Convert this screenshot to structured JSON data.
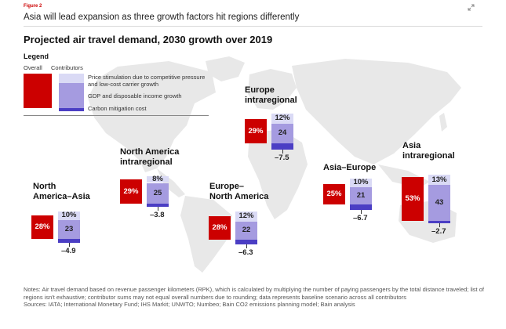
{
  "header": {
    "figure_label": "Figure 2",
    "title": "Asia will lead expansion as three growth factors hit regions differently"
  },
  "legend": {
    "title": "Legend",
    "overall_label": "Overall",
    "contributors_label": "Contributors",
    "price_text": "Price stimulation due to competitive pressure and low-cost carrier growth",
    "gdp_text": "GDP and disposable income growth",
    "carbon_text": "Carbon mitigation cost"
  },
  "colors": {
    "overall": "#cc0000",
    "price": "#dadaf5",
    "gdp": "#a59be0",
    "carbon": "#4b3ec4",
    "map": "#e8e8e8"
  },
  "chart_data": {
    "type": "bar",
    "title": "Projected air travel demand, 2030 growth over 2019",
    "unit": "%",
    "regions": [
      {
        "name": "North America–Asia",
        "overall": 28,
        "price": 10,
        "gdp": 23,
        "carbon": -4.9,
        "overall_label": "28%",
        "price_label": "10%",
        "gdp_label": "23",
        "carbon_label": "–4.9"
      },
      {
        "name": "North America intraregional",
        "overall": 29,
        "price": 8,
        "gdp": 25,
        "carbon": -3.8,
        "overall_label": "29%",
        "price_label": "8%",
        "gdp_label": "25",
        "carbon_label": "–3.8"
      },
      {
        "name": "Europe–North America",
        "overall": 28,
        "price": 12,
        "gdp": 22,
        "carbon": -6.3,
        "overall_label": "28%",
        "price_label": "12%",
        "gdp_label": "22",
        "carbon_label": "–6.3"
      },
      {
        "name": "Europe intraregional",
        "overall": 29,
        "price": 12,
        "gdp": 24,
        "carbon": -7.5,
        "overall_label": "29%",
        "price_label": "12%",
        "gdp_label": "24",
        "carbon_label": "–7.5"
      },
      {
        "name": "Asia–Europe",
        "overall": 25,
        "price": 10,
        "gdp": 21,
        "carbon": -6.7,
        "overall_label": "25%",
        "price_label": "10%",
        "gdp_label": "21",
        "carbon_label": "–6.7"
      },
      {
        "name": "Asia intraregional",
        "overall": 53,
        "price": 13,
        "gdp": 43,
        "carbon": -2.7,
        "overall_label": "53%",
        "price_label": "13%",
        "gdp_label": "43",
        "carbon_label": "–2.7"
      }
    ]
  },
  "region_titles": {
    "na_asia": [
      "North",
      "America–Asia"
    ],
    "na_intra": [
      "North America",
      "intraregional"
    ],
    "eu_na": [
      "Europe–",
      "North America"
    ],
    "eu_intra": [
      "Europe",
      "intraregional"
    ],
    "asia_eu": [
      "Asia–Europe"
    ],
    "asia_intra": [
      "Asia",
      "intraregional"
    ]
  },
  "notes": {
    "note": "Notes: Air travel demand based on revenue passenger kilometers (RPK), which is calculated by multiplying the number of paying passengers by the total distance traveled; list of regions isn't exhaustive; contributor sums may not equal overall numbers due to rounding; data represents baseline scenario across all contributors",
    "sources": "Sources: IATA; International Monetary Fund; IHS Markit; UNWTO; Numbeo; Bain CO2 emissions planning model; Bain analysis"
  }
}
